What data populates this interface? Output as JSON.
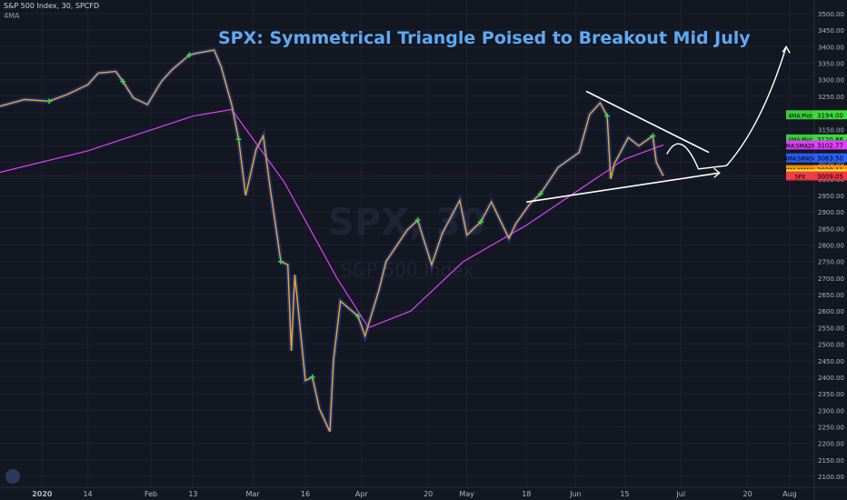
{
  "header": {
    "symbol_line": "S&P 500 Index, 30, SPCFD",
    "indicator": "4MA"
  },
  "watermark": {
    "ticker": "SPX, 30",
    "name": "S&P 500 Index"
  },
  "colors": {
    "background": "#131722",
    "title": "#5ea9f2",
    "sma200": "#e040fb",
    "price": "#f5a623",
    "sma50": "#2962ff",
    "annotation": "#ffffff",
    "signal": "#3ddc3d"
  },
  "chart_data": {
    "type": "line",
    "title": "SPX: Symmetrical Triangle Poised to Breakout Mid July",
    "ylim": [
      2100,
      3500
    ],
    "y_ticks": [
      2100,
      2150,
      2200,
      2250,
      2300,
      2350,
      2400,
      2450,
      2500,
      2550,
      2600,
      2650,
      2700,
      2750,
      2800,
      2850,
      2900,
      2950,
      3000,
      3050,
      3100,
      3150,
      3200,
      3250,
      3300,
      3350,
      3400,
      3450,
      3500
    ],
    "x_ticks": [
      {
        "label": "2020",
        "date": "2020-01-01"
      },
      {
        "label": "14",
        "date": "2020-01-14"
      },
      {
        "label": "Feb",
        "date": "2020-02-01"
      },
      {
        "label": "13",
        "date": "2020-02-13"
      },
      {
        "label": "Mar",
        "date": "2020-03-01"
      },
      {
        "label": "16",
        "date": "2020-03-16"
      },
      {
        "label": "Apr",
        "date": "2020-04-01"
      },
      {
        "label": "20",
        "date": "2020-04-20"
      },
      {
        "label": "May",
        "date": "2020-05-01"
      },
      {
        "label": "18",
        "date": "2020-05-18"
      },
      {
        "label": "Jun",
        "date": "2020-06-01"
      },
      {
        "label": "15",
        "date": "2020-06-15"
      },
      {
        "label": "Jul",
        "date": "2020-07-01"
      },
      {
        "label": "20",
        "date": "2020-07-20"
      },
      {
        "label": "Aug",
        "date": "2020-08-01"
      }
    ],
    "series": [
      {
        "name": "SPX",
        "points": [
          [
            "2019-12-20",
            3220
          ],
          [
            "2019-12-27",
            3240
          ],
          [
            "2020-01-03",
            3235
          ],
          [
            "2020-01-08",
            3255
          ],
          [
            "2020-01-14",
            3285
          ],
          [
            "2020-01-17",
            3320
          ],
          [
            "2020-01-22",
            3325
          ],
          [
            "2020-01-24",
            3295
          ],
          [
            "2020-01-27",
            3245
          ],
          [
            "2020-01-31",
            3225
          ],
          [
            "2020-02-04",
            3295
          ],
          [
            "2020-02-07",
            3330
          ],
          [
            "2020-02-12",
            3375
          ],
          [
            "2020-02-14",
            3380
          ],
          [
            "2020-02-19",
            3390
          ],
          [
            "2020-02-21",
            3340
          ],
          [
            "2020-02-24",
            3225
          ],
          [
            "2020-02-26",
            3120
          ],
          [
            "2020-02-28",
            2950
          ],
          [
            "2020-03-02",
            3090
          ],
          [
            "2020-03-04",
            3130
          ],
          [
            "2020-03-06",
            2970
          ],
          [
            "2020-03-09",
            2750
          ],
          [
            "2020-03-11",
            2740
          ],
          [
            "2020-03-12",
            2480
          ],
          [
            "2020-03-13",
            2710
          ],
          [
            "2020-03-16",
            2390
          ],
          [
            "2020-03-18",
            2400
          ],
          [
            "2020-03-20",
            2305
          ],
          [
            "2020-03-23",
            2235
          ],
          [
            "2020-03-24",
            2450
          ],
          [
            "2020-03-26",
            2630
          ],
          [
            "2020-03-31",
            2585
          ],
          [
            "2020-04-02",
            2525
          ],
          [
            "2020-04-06",
            2665
          ],
          [
            "2020-04-08",
            2750
          ],
          [
            "2020-04-14",
            2845
          ],
          [
            "2020-04-17",
            2875
          ],
          [
            "2020-04-21",
            2740
          ],
          [
            "2020-04-24",
            2835
          ],
          [
            "2020-04-29",
            2935
          ],
          [
            "2020-05-01",
            2830
          ],
          [
            "2020-05-05",
            2870
          ],
          [
            "2020-05-08",
            2930
          ],
          [
            "2020-05-13",
            2820
          ],
          [
            "2020-05-15",
            2865
          ],
          [
            "2020-05-19",
            2925
          ],
          [
            "2020-05-22",
            2955
          ],
          [
            "2020-05-27",
            3035
          ],
          [
            "2020-06-02",
            3080
          ],
          [
            "2020-06-05",
            3195
          ],
          [
            "2020-06-08",
            3230
          ],
          [
            "2020-06-10",
            3190
          ],
          [
            "2020-06-11",
            3000
          ],
          [
            "2020-06-12",
            3045
          ],
          [
            "2020-06-16",
            3125
          ],
          [
            "2020-06-19",
            3100
          ],
          [
            "2020-06-23",
            3130
          ],
          [
            "2020-06-24",
            3050
          ],
          [
            "2020-06-26",
            3009
          ]
        ]
      },
      {
        "name": "SMA200",
        "points": [
          [
            "2019-12-20",
            3020
          ],
          [
            "2020-01-14",
            3085
          ],
          [
            "2020-02-13",
            3190
          ],
          [
            "2020-02-24",
            3210
          ],
          [
            "2020-03-10",
            2990
          ],
          [
            "2020-03-25",
            2700
          ],
          [
            "2020-04-03",
            2550
          ],
          [
            "2020-04-15",
            2600
          ],
          [
            "2020-04-30",
            2750
          ],
          [
            "2020-05-18",
            2860
          ],
          [
            "2020-06-01",
            2960
          ],
          [
            "2020-06-15",
            3060
          ],
          [
            "2020-06-26",
            3102.77
          ]
        ]
      }
    ],
    "price_labels": [
      {
        "label": "4MA:Plot",
        "value": 3194.0,
        "text": "3194.00",
        "color": "#3ddc3d"
      },
      {
        "label": "4MA:Plot",
        "value": 3120.86,
        "text": "3120.86",
        "color": "#3ddc3d"
      },
      {
        "label": "4MA:SMA200",
        "value": 3102.77,
        "text": "3102.77",
        "color": "#e040fb"
      },
      {
        "label": "4MA:SMA50",
        "value": 3063.5,
        "text": "3063.50",
        "color": "#2962ff"
      },
      {
        "label": "4MA:SMA10",
        "value": 3028.11,
        "text": "3028.11",
        "color": "#ff9800"
      },
      {
        "label": "4MA:SMA5",
        "value": 3014.94,
        "text": "3014.94",
        "color": "#ffeb3b"
      },
      {
        "label": "SPX",
        "value": 3009.05,
        "text": "3009.05",
        "color": "#f23645"
      }
    ],
    "annotations": {
      "triangle_upper": [
        [
          "2020-06-04",
          3265
        ],
        [
          "2020-07-09",
          3080
        ]
      ],
      "triangle_lower": [
        [
          "2020-05-18",
          2930
        ],
        [
          "2020-07-12",
          3018
        ]
      ],
      "projection": [
        [
          "2020-06-27",
          3075
        ],
        [
          "2020-07-01",
          3155
        ],
        [
          "2020-07-06",
          3030
        ],
        [
          "2020-07-14",
          3040
        ],
        [
          "2020-07-24",
          3160
        ],
        [
          "2020-07-31",
          3400
        ]
      ]
    }
  }
}
